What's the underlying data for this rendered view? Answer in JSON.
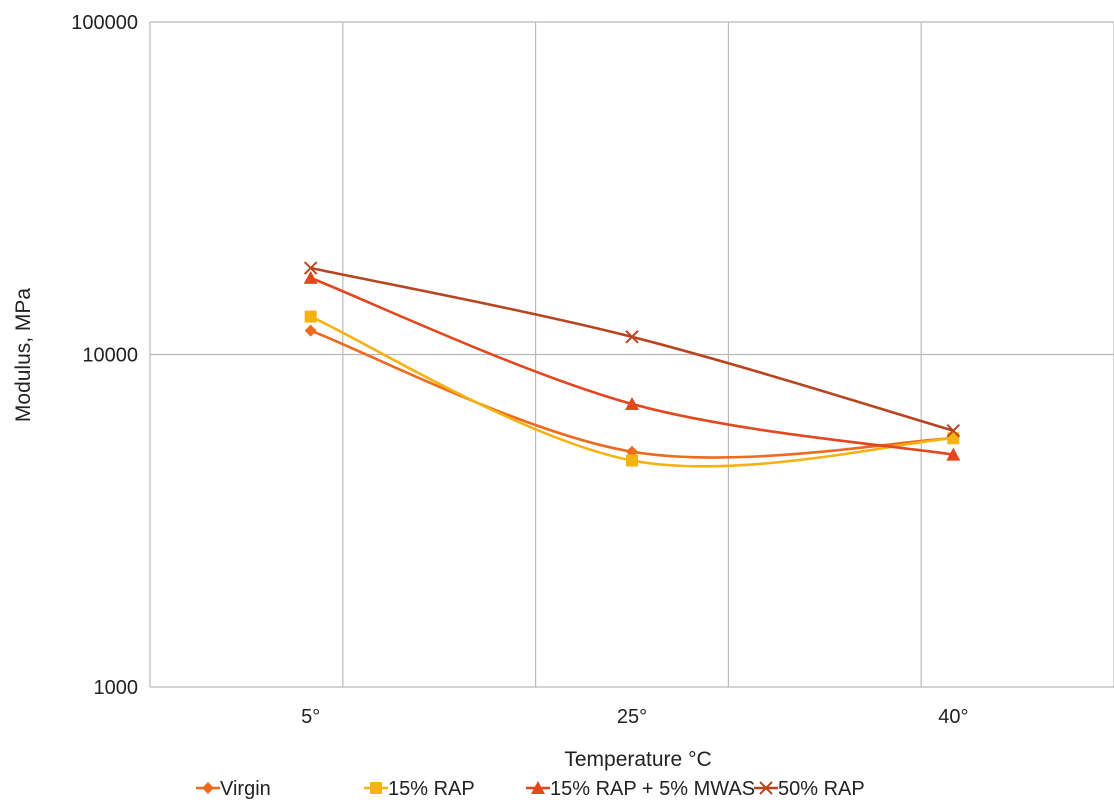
{
  "chart_data": {
    "type": "line",
    "title": "",
    "xlabel": "Temperature °C",
    "ylabel": "Modulus, MPa",
    "y_scale": "log",
    "ylim": [
      1000,
      100000
    ],
    "y_ticks": [
      "1000",
      "10000",
      "100000"
    ],
    "categories": [
      "5°",
      "25°",
      "40°"
    ],
    "grid": true,
    "smoothed": true,
    "legend_position": "bottom",
    "series": [
      {
        "name": "Virgin",
        "values": [
          11800,
          5100,
          5600
        ],
        "color": "#EE6A1F",
        "marker": "diamond"
      },
      {
        "name": "15% RAP",
        "values": [
          13000,
          4800,
          5600
        ],
        "color": "#F6B211",
        "marker": "square"
      },
      {
        "name": "15% RAP + 5% MWAS",
        "values": [
          17000,
          7100,
          5000
        ],
        "color": "#E2471E",
        "marker": "triangle"
      },
      {
        "name": "50% RAP",
        "values": [
          18200,
          11300,
          5900
        ],
        "color": "#B8451F",
        "marker": "x"
      }
    ]
  }
}
